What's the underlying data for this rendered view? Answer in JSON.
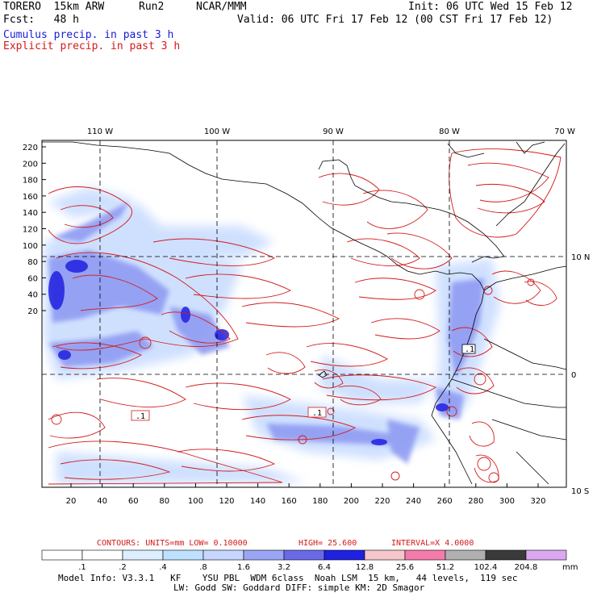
{
  "header": {
    "model": "TORERO  15km ARW",
    "run": "Run2",
    "org": "NCAR/MMM",
    "init": "Init: 06 UTC Wed 15 Feb 12",
    "fcst": "Fcst:   48 h",
    "valid": "Valid: 06 UTC Fri 17 Feb 12 (00 CST Fri 17 Feb 12)",
    "line_cumulus": "Cumulus precip. in past 3 h",
    "line_explicit": "Explicit precip. in past 3 h"
  },
  "map": {
    "lon_labels": [
      "110 W",
      "100 W",
      "90 W",
      "80 W",
      "70 W"
    ],
    "lat_labels": [
      "10 N",
      "0",
      "10 S"
    ],
    "y_ticks": [
      "220",
      "200",
      "180",
      "160",
      "140",
      "120",
      "100",
      "80",
      "60",
      "40",
      "20"
    ],
    "x_ticks": [
      "20",
      "40",
      "60",
      "80",
      "100",
      "120",
      "140",
      "160",
      "180",
      "200",
      "220",
      "240",
      "260",
      "280",
      "300",
      "320"
    ],
    "max_labels": [
      ".1",
      ".1",
      ".1"
    ],
    "colors": {
      "explicit": "#d41a1a",
      "cumulus_light": "#cfe0ff",
      "cumulus_mid": "#8f9bf2",
      "cumulus_dark": "#2020e0",
      "coast": "#000000"
    }
  },
  "contours": {
    "units": "CONTOURS:  UNITS=mm  LOW= 0.10000",
    "high": "HIGH=  25.600",
    "interval": "INTERVAL=X  4.0000"
  },
  "colorbar": {
    "labels": [
      ".1",
      ".2",
      ".4",
      ".8",
      "1.6",
      "3.2",
      "6.4",
      "12.8",
      "25.6",
      "51.2",
      "102.4",
      "204.8"
    ],
    "units": "mm",
    "colors": [
      "#ffffff",
      "#ffffff",
      "#ddeeff",
      "#bfe0ff",
      "#c6d6ff",
      "#9aa6f5",
      "#6a6ae8",
      "#2020e0",
      "#f5c6cc",
      "#f47cab",
      "#b0b0b0",
      "#3a3a3a",
      "#d9a8f0"
    ]
  },
  "footer": {
    "line1": "Model Info: V3.3.1   KF    YSU PBL  WDM 6class  Noah LSM  15 km,   44 levels,  119 sec",
    "line2": "LW: Godd SW: Goddard DIFF: simple KM: 2D Smagor"
  }
}
